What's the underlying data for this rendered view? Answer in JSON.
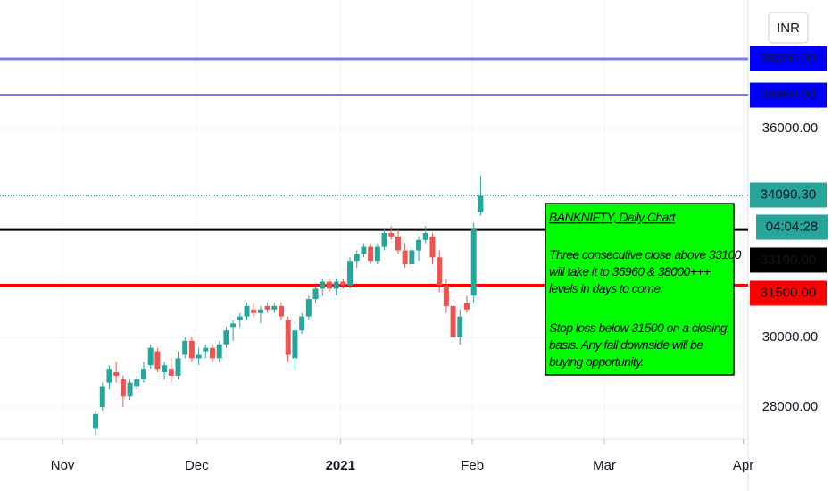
{
  "chart_data": {
    "type": "candlestick",
    "currency": "INR",
    "categories": [
      null,
      null,
      null,
      null,
      null,
      null,
      null,
      null,
      null,
      null,
      null,
      null,
      null,
      null,
      null,
      null,
      null,
      null,
      null,
      null,
      null,
      null,
      null,
      null,
      null,
      null,
      null,
      null,
      null,
      null,
      null,
      null,
      null,
      null,
      null,
      null,
      null,
      null,
      null,
      null,
      null,
      null,
      null,
      null,
      null,
      null,
      null,
      null,
      null,
      null,
      null,
      null,
      null,
      null,
      null,
      null,
      null
    ],
    "open": [
      27400,
      28000,
      28700,
      29000,
      28800,
      28300,
      28600,
      28800,
      29200,
      29600,
      29000,
      29100,
      28900,
      29500,
      29900,
      29400,
      29600,
      29700,
      29400,
      29800,
      30300,
      30500,
      30600,
      30800,
      30700,
      30900,
      30800,
      30900,
      30500,
      29400,
      30200,
      30600,
      31100,
      31400,
      31600,
      31400,
      31600,
      31500,
      32200,
      32400,
      32600,
      32200,
      32600,
      33000,
      32900,
      32500,
      32100,
      32500,
      32800,
      32900,
      32300,
      31500,
      30900,
      30000,
      31000,
      31200,
      33600
    ],
    "high": [
      27900,
      28700,
      29200,
      29300,
      28900,
      28800,
      28900,
      29300,
      29800,
      29700,
      29300,
      29400,
      29600,
      30000,
      30000,
      29700,
      29800,
      29800,
      29900,
      30300,
      30500,
      30700,
      31000,
      31000,
      30900,
      31000,
      31000,
      31000,
      30600,
      30300,
      30700,
      31200,
      31500,
      31700,
      31700,
      31700,
      31700,
      32300,
      32500,
      32700,
      32700,
      32700,
      33100,
      33200,
      33100,
      32700,
      32600,
      32900,
      33200,
      33000,
      32500,
      31700,
      31000,
      30800,
      31200,
      33300,
      34640
    ],
    "low": [
      27200,
      27900,
      28500,
      28700,
      28000,
      28200,
      28500,
      28700,
      29100,
      29000,
      28800,
      28700,
      28800,
      29400,
      29300,
      29200,
      29400,
      29300,
      29300,
      29700,
      29900,
      30300,
      30500,
      30600,
      30400,
      30700,
      30700,
      30500,
      29300,
      29100,
      30100,
      30500,
      31000,
      31200,
      31300,
      31200,
      31400,
      31400,
      32000,
      32300,
      32100,
      32100,
      32500,
      32800,
      32400,
      32000,
      32000,
      32200,
      32700,
      32100,
      31300,
      30700,
      29900,
      29800,
      30700,
      31000,
      33500
    ],
    "close": [
      27800,
      28600,
      29100,
      28900,
      28300,
      28700,
      28800,
      29100,
      29700,
      29100,
      29200,
      28900,
      29400,
      29900,
      29400,
      29500,
      29700,
      29400,
      29800,
      30200,
      30400,
      30600,
      30900,
      30700,
      30800,
      30800,
      30900,
      30600,
      29500,
      30200,
      30600,
      31100,
      31400,
      31600,
      31400,
      31600,
      31500,
      32200,
      32400,
      32600,
      32200,
      32600,
      33000,
      32900,
      32500,
      32100,
      32500,
      32800,
      33000,
      32300,
      31500,
      30900,
      30000,
      30600,
      30800,
      33100,
      34090.3
    ],
    "up_color": "#26a69a",
    "down_color": "#ef5350",
    "xlim": [
      -13.9,
      94.9
    ],
    "xticks": [
      {
        "value": -4.8,
        "label": "Nov"
      },
      {
        "value": 14.7,
        "label": "Dec"
      },
      {
        "value": 35.6,
        "label": "2021",
        "bold": true
      },
      {
        "value": 54.8,
        "label": "Feb"
      },
      {
        "value": 74,
        "label": "Mar"
      },
      {
        "value": 94.2,
        "label": "Apr"
      }
    ],
    "ylim": [
      27077,
      39692
    ],
    "yticks": [
      {
        "value": 28000,
        "label": "28000.00"
      },
      {
        "value": 30000,
        "label": "30000.00"
      },
      {
        "value": 36000,
        "label": "36000.00"
      }
    ],
    "grid": true,
    "levels": [
      {
        "value": 38000,
        "label": "38000.00",
        "color": "#7b7bea",
        "label_color": "#0000ff"
      },
      {
        "value": 36960,
        "label": "36960.00",
        "color": "#7b7bea",
        "label_color": "#0000ff"
      },
      {
        "value": 34090.3,
        "label": "34090.30",
        "color": "#26a69a",
        "label_color": "#26a69a",
        "dotted": true,
        "countdown": "04:04:28"
      },
      {
        "value": 33100,
        "label": "33100.00",
        "color": "#000000",
        "label_color": "#000000"
      },
      {
        "value": 31500,
        "label": "31500.00",
        "color": "#ff0000",
        "label_color": "#ff0000"
      }
    ],
    "annotation": {
      "title": "BANKNIFTY, Daily Chart",
      "paragraphs": [
        [
          "Three consecutive close above 33100",
          "will take it to 36960 & 38000+++",
          "levels in days to come."
        ],
        [
          "Stop loss below 31500 on a closing",
          "basis.  Any fall  downside will be",
          "buying opportunity."
        ]
      ]
    }
  }
}
